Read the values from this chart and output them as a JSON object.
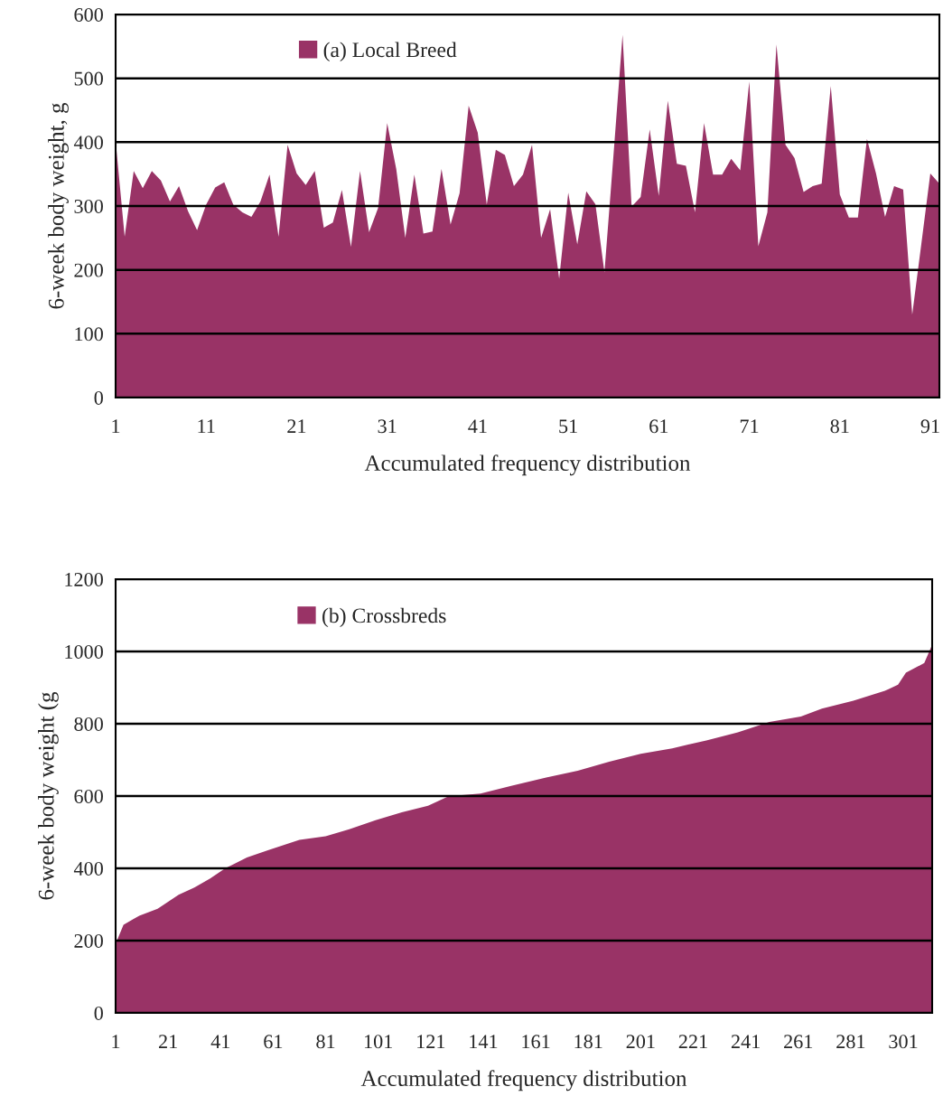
{
  "chart_data": [
    {
      "type": "area",
      "xlabel": "Accumulated frequency distribution",
      "ylabel": "6-week body weight, g",
      "x": [
        1,
        2,
        3,
        4,
        5,
        6,
        7,
        8,
        9,
        10,
        11,
        12,
        13,
        14,
        15,
        16,
        17,
        18,
        19,
        20,
        21,
        22,
        23,
        24,
        25,
        26,
        27,
        28,
        29,
        30,
        31,
        32,
        33,
        34,
        35,
        36,
        37,
        38,
        39,
        40,
        41,
        42,
        43,
        44,
        45,
        46,
        47,
        48,
        49,
        50,
        51,
        52,
        53,
        54,
        55,
        56,
        57,
        58,
        59,
        60,
        61,
        62,
        63,
        64,
        65,
        66,
        67,
        68,
        69,
        70,
        71,
        72,
        73,
        74,
        75,
        76,
        77,
        78,
        79,
        80,
        81,
        82,
        83,
        84,
        85,
        86,
        87,
        88,
        89,
        90,
        91,
        92
      ],
      "series": [
        {
          "name": "(a) Local Breed",
          "color": "#993366",
          "values": [
            402,
            252,
            355,
            328,
            355,
            340,
            307,
            331,
            292,
            262,
            302,
            329,
            337,
            302,
            290,
            283,
            307,
            349,
            252,
            396,
            351,
            333,
            355,
            266,
            274,
            325,
            236,
            355,
            259,
            297,
            430,
            358,
            250,
            349,
            257,
            260,
            358,
            271,
            320,
            457,
            415,
            302,
            388,
            380,
            331,
            349,
            396,
            250,
            295,
            186,
            321,
            240,
            323,
            303,
            196,
            380,
            568,
            299,
            314,
            420,
            316,
            465,
            366,
            363,
            290,
            430,
            349,
            349,
            374,
            356,
            495,
            237,
            290,
            553,
            396,
            375,
            322,
            331,
            335,
            488,
            318,
            282,
            282,
            405,
            351,
            283,
            331,
            326,
            130,
            240,
            351,
            335
          ]
        }
      ],
      "xlim": [
        1,
        92
      ],
      "ylim": [
        0,
        600
      ],
      "xticks": [
        1,
        11,
        21,
        31,
        41,
        51,
        61,
        71,
        81,
        91
      ],
      "yticks": [
        0,
        100,
        200,
        300,
        400,
        500,
        600
      ],
      "grid": "y",
      "legend": "top left"
    },
    {
      "type": "area",
      "xlabel": "Accumulated frequency distribution",
      "ylabel": "6-week body weight (g",
      "x": [
        1,
        4,
        10,
        17,
        25,
        31,
        37,
        43,
        51,
        59,
        71,
        81,
        90,
        100,
        110,
        120,
        128,
        140,
        152,
        165,
        177,
        189,
        201,
        213,
        226,
        238,
        250,
        262,
        270,
        282,
        294,
        299,
        302,
        309,
        312
      ],
      "series": [
        {
          "name": "(b) Crossbreds",
          "color": "#993366",
          "values": [
            191,
            244,
            269,
            288,
            327,
            347,
            372,
            401,
            430,
            450,
            479,
            489,
            508,
            533,
            555,
            573,
            600,
            607,
            629,
            651,
            670,
            695,
            717,
            732,
            754,
            776,
            805,
            820,
            842,
            864,
            891,
            908,
            941,
            968,
            1019
          ]
        }
      ],
      "xlim": [
        1,
        312
      ],
      "ylim": [
        0,
        1200
      ],
      "xticks": [
        1,
        21,
        41,
        61,
        81,
        101,
        121,
        141,
        161,
        181,
        201,
        221,
        241,
        261,
        281,
        301
      ],
      "yticks": [
        0,
        200,
        400,
        600,
        800,
        1000,
        1200
      ],
      "grid": "y",
      "legend": "top left"
    }
  ]
}
